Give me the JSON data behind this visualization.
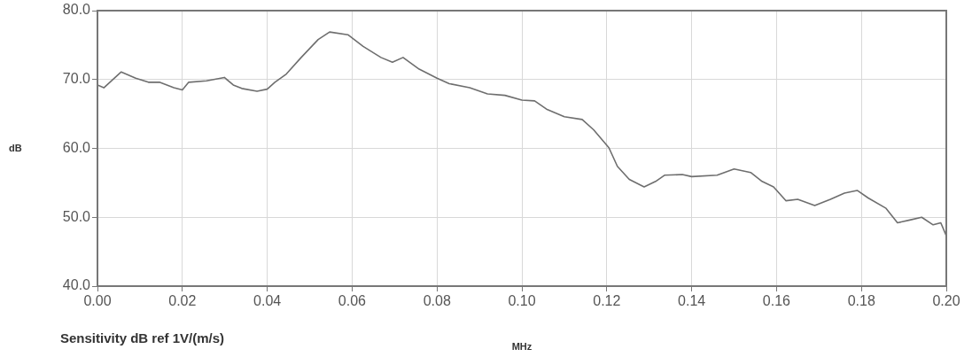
{
  "chart_data": {
    "type": "line",
    "xlabel": "MHz",
    "ylabel": "dB",
    "annotations": [
      "Sensitivity dB ref 1V/(m/s)"
    ],
    "xlim": [
      0,
      0.2
    ],
    "ylim": [
      40,
      80
    ],
    "xticks": [
      {
        "value": 0,
        "label": "0.00"
      },
      {
        "value": 0.02,
        "label": "0.02"
      },
      {
        "value": 0.04,
        "label": "0.04"
      },
      {
        "value": 0.06,
        "label": "0.06"
      },
      {
        "value": 0.08,
        "label": "0.08"
      },
      {
        "value": 0.1,
        "label": "0.10"
      },
      {
        "value": 0.12,
        "label": "0.12"
      },
      {
        "value": 0.14,
        "label": "0.14"
      },
      {
        "value": 0.16,
        "label": "0.16"
      },
      {
        "value": 0.18,
        "label": "0.18"
      },
      {
        "value": 0.2,
        "label": "0.20"
      }
    ],
    "yticks": [
      {
        "value": 40,
        "label": "40.0"
      },
      {
        "value": 50,
        "label": "50.0"
      },
      {
        "value": 60,
        "label": "60.0"
      },
      {
        "value": 70,
        "label": "70.0"
      },
      {
        "value": 80,
        "label": "80.0"
      }
    ],
    "grid": true,
    "marker": "none",
    "line_style": "solid",
    "series": [
      {
        "color": "#6e6e6e",
        "x": [
          0,
          0.0015,
          0.0056,
          0.009,
          0.012,
          0.0146,
          0.018,
          0.02,
          0.0215,
          0.0257,
          0.0299,
          0.032,
          0.034,
          0.0376,
          0.04,
          0.0418,
          0.0445,
          0.048,
          0.052,
          0.0547,
          0.059,
          0.0626,
          0.0668,
          0.0695,
          0.072,
          0.0758,
          0.08,
          0.0829,
          0.0877,
          0.0919,
          0.096,
          0.1,
          0.103,
          0.1058,
          0.11,
          0.1142,
          0.1169,
          0.1205,
          0.1225,
          0.1253,
          0.1288,
          0.1315,
          0.1336,
          0.1378,
          0.14,
          0.146,
          0.15,
          0.1539,
          0.1566,
          0.1593,
          0.1622,
          0.165,
          0.169,
          0.1727,
          0.176,
          0.179,
          0.1816,
          0.1858,
          0.1885,
          0.1914,
          0.1942,
          0.1969,
          0.1987,
          0.2
        ],
        "values": [
          69.2,
          68.8,
          71.1,
          70.2,
          69.6,
          69.6,
          68.8,
          68.5,
          69.6,
          69.8,
          70.3,
          69.2,
          68.7,
          68.3,
          68.6,
          69.6,
          70.8,
          73.2,
          75.8,
          76.9,
          76.5,
          74.8,
          73.2,
          72.5,
          73.2,
          71.5,
          70.2,
          69.4,
          68.8,
          67.9,
          67.7,
          67.0,
          66.9,
          65.7,
          64.6,
          64.2,
          62.7,
          60.1,
          57.4,
          55.5,
          54.4,
          55.2,
          56.1,
          56.2,
          55.9,
          56.1,
          57.0,
          56.5,
          55.2,
          54.4,
          52.4,
          52.6,
          51.7,
          52.6,
          53.5,
          53.9,
          52.8,
          51.3,
          49.2,
          49.6,
          50.0,
          48.9,
          49.2,
          47.3
        ]
      }
    ]
  }
}
